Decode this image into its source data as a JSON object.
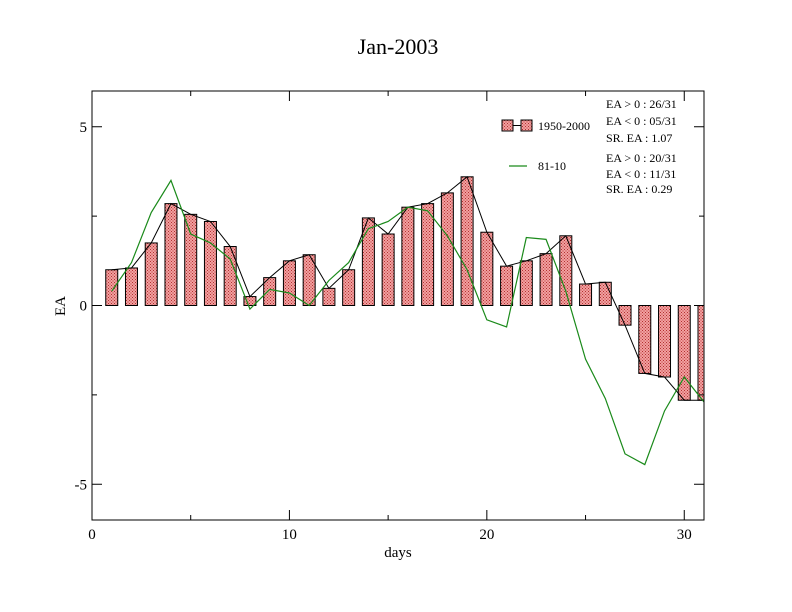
{
  "chart_data": {
    "type": "bar",
    "title": "Jan-2003",
    "xlabel": "days",
    "ylabel": "EA",
    "xlim": [
      0,
      31
    ],
    "ylim": [
      -6,
      6
    ],
    "xticks": [
      0,
      10,
      20,
      30
    ],
    "xtick_labels": [
      "0",
      "10",
      "20",
      "30"
    ],
    "yticks": [
      -5,
      0,
      5
    ],
    "ytick_labels": [
      "-5",
      "0",
      "5"
    ],
    "grid": false,
    "legend_position": "top-right",
    "colors": {
      "bar_fill": "#f2a0a0",
      "bar_hatch": "#b33030",
      "bar_stroke": "#000000",
      "bar_line": "#000000",
      "line_81_10": "#1a8a1a"
    },
    "series": [
      {
        "name": "1950-2000",
        "kind": "bar",
        "x": [
          1,
          2,
          3,
          4,
          5,
          6,
          7,
          8,
          9,
          10,
          11,
          12,
          13,
          14,
          15,
          16,
          17,
          18,
          19,
          20,
          21,
          22,
          23,
          24,
          25,
          26,
          27,
          28,
          29,
          30,
          31
        ],
        "values": [
          1.0,
          1.05,
          1.75,
          2.85,
          2.55,
          2.35,
          1.65,
          0.25,
          0.78,
          1.25,
          1.42,
          0.48,
          1.0,
          2.45,
          2.0,
          2.75,
          2.85,
          3.15,
          3.6,
          2.05,
          1.1,
          1.25,
          1.45,
          1.95,
          0.6,
          0.65,
          -0.55,
          -1.9,
          -2.0,
          -2.65,
          -2.65
        ]
      },
      {
        "name": "81-10",
        "kind": "line",
        "x": [
          1,
          2,
          3,
          4,
          5,
          6,
          7,
          8,
          9,
          10,
          11,
          12,
          13,
          14,
          15,
          16,
          17,
          18,
          19,
          20,
          21,
          22,
          23,
          24,
          25,
          26,
          27,
          28,
          29,
          30,
          31
        ],
        "values": [
          0.4,
          1.2,
          2.6,
          3.5,
          2.0,
          1.75,
          1.3,
          -0.1,
          0.45,
          0.35,
          0.0,
          0.7,
          1.2,
          2.15,
          2.35,
          2.75,
          2.65,
          1.95,
          1.0,
          -0.4,
          -0.6,
          1.9,
          1.85,
          0.4,
          -1.5,
          -2.6,
          -4.15,
          -4.45,
          -2.95,
          -2.0,
          -2.7
        ]
      }
    ],
    "annotations": {
      "group1": [
        "EA > 0 : 26/31",
        "EA < 0 : 05/31",
        "SR. EA :  1.07"
      ],
      "group2": [
        "EA > 0 : 20/31",
        "EA < 0 : 11/31",
        "SR. EA :  0.29"
      ]
    }
  }
}
